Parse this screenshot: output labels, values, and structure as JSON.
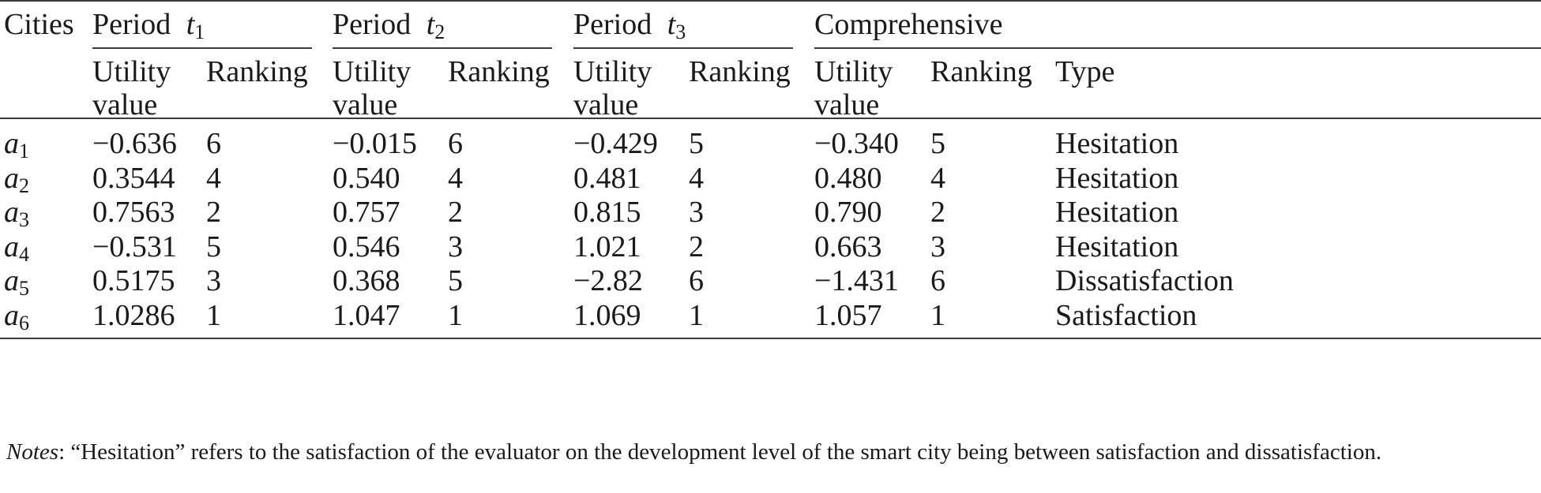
{
  "table": {
    "header": {
      "cities": "Cities",
      "periods": [
        {
          "label": "Period",
          "var": "t",
          "sub": "1"
        },
        {
          "label": "Period",
          "var": "t",
          "sub": "2"
        },
        {
          "label": "Period",
          "var": "t",
          "sub": "3"
        }
      ],
      "comprehensive": "Comprehensive",
      "sub_utility_line1": "Utility",
      "sub_utility_line2": "value",
      "sub_ranking": "Ranking",
      "sub_type": "Type"
    },
    "rows": [
      {
        "var": "a",
        "sub": "1",
        "cells": [
          "−0.636",
          "6",
          "−0.015",
          "6",
          "−0.429",
          "5",
          "−0.340",
          "5",
          "Hesitation"
        ]
      },
      {
        "var": "a",
        "sub": "2",
        "cells": [
          "0.3544",
          "4",
          "0.540",
          "4",
          "0.481",
          "4",
          "0.480",
          "4",
          "Hesitation"
        ]
      },
      {
        "var": "a",
        "sub": "3",
        "cells": [
          "0.7563",
          "2",
          "0.757",
          "2",
          "0.815",
          "3",
          "0.790",
          "2",
          "Hesitation"
        ]
      },
      {
        "var": "a",
        "sub": "4",
        "cells": [
          "−0.531",
          "5",
          "0.546",
          "3",
          "1.021",
          "2",
          "0.663",
          "3",
          "Hesitation"
        ]
      },
      {
        "var": "a",
        "sub": "5",
        "cells": [
          "0.5175",
          "3",
          "0.368",
          "5",
          "−2.82",
          "6",
          "−1.431",
          "6",
          "Dissatisfaction"
        ]
      },
      {
        "var": "a",
        "sub": "6",
        "cells": [
          "1.0286",
          "1",
          "1.047",
          "1",
          "1.069",
          "1",
          "1.057",
          "1",
          "Satisfaction"
        ]
      }
    ]
  },
  "notes": {
    "label": "Notes",
    "text": ": “Hesitation” refers to the satisfaction of the evaluator on the development level of the smart city being between satisfaction and dissatisfaction."
  }
}
